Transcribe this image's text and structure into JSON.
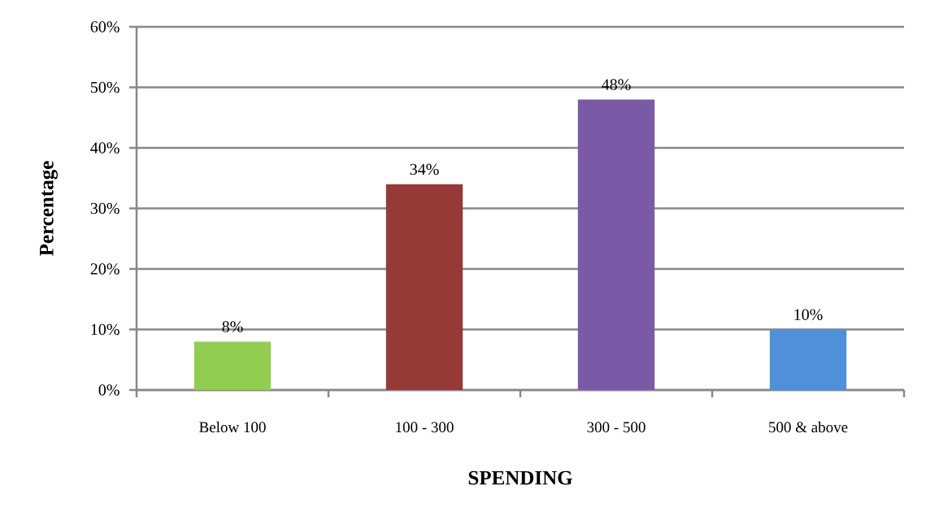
{
  "chart_data": {
    "type": "bar",
    "categories": [
      "Below 100",
      "100 - 300",
      "300 - 500",
      "500 & above"
    ],
    "values": [
      8,
      34,
      48,
      10
    ],
    "colors": [
      "#92cd51",
      "#963a38",
      "#7a5aa6",
      "#5090d8"
    ],
    "value_labels": [
      "8%",
      "34%",
      "48%",
      "10%"
    ],
    "xlabel": "SPENDING",
    "ylabel": "Percentage",
    "ylim": [
      0,
      60
    ],
    "yticks": [
      {
        "value": 0,
        "label": "0%"
      },
      {
        "value": 10,
        "label": "10%"
      },
      {
        "value": 20,
        "label": "20%"
      },
      {
        "value": 30,
        "label": "30%"
      },
      {
        "value": 40,
        "label": "40%"
      },
      {
        "value": 50,
        "label": "50%"
      },
      {
        "value": 60,
        "label": "60%"
      }
    ],
    "grid": "y"
  }
}
